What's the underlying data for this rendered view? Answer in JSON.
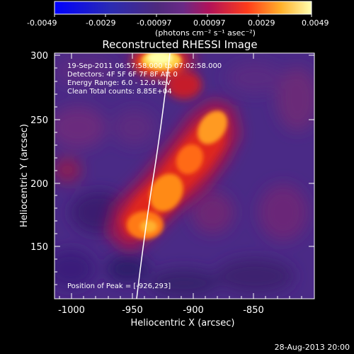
{
  "colorbar": {
    "ticks": [
      "-0.0049",
      "-0.0029",
      "-0.00097",
      "0.00097",
      "0.0029",
      "0.0049"
    ],
    "units_label": "(photons cm⁻² s⁻¹ asec⁻²)"
  },
  "image": {
    "title": "Reconstructed RHESSI Image",
    "xlabel": "Heliocentric X (arcsec)",
    "ylabel": "Heliocentric Y (arcsec)",
    "x_ticks": [
      "-1000",
      "-950",
      "-900",
      "-850"
    ],
    "y_ticks": [
      "150",
      "200",
      "250",
      "300"
    ],
    "info_lines": [
      "19-Sep-2011 06:57:58.000 to 07:02:58.000",
      "Detectors: 4F 5F 6F 7F 8F  Att 0",
      "Energy Range: 6.0 - 12.0 keV",
      "Clean    Total counts: 8.85E+04"
    ],
    "peak_label": "Position of Peak = [-926,293]"
  },
  "footer": {
    "date_stamp": "28-Aug-2013 20:00"
  },
  "colors": {
    "background": "#000000",
    "colormap": [
      "#0000ff",
      "#2a1670",
      "#4b2a88",
      "#5a2f87",
      "#c0122a",
      "#ff5a10",
      "#ffd84a",
      "#ffffcc"
    ]
  }
}
